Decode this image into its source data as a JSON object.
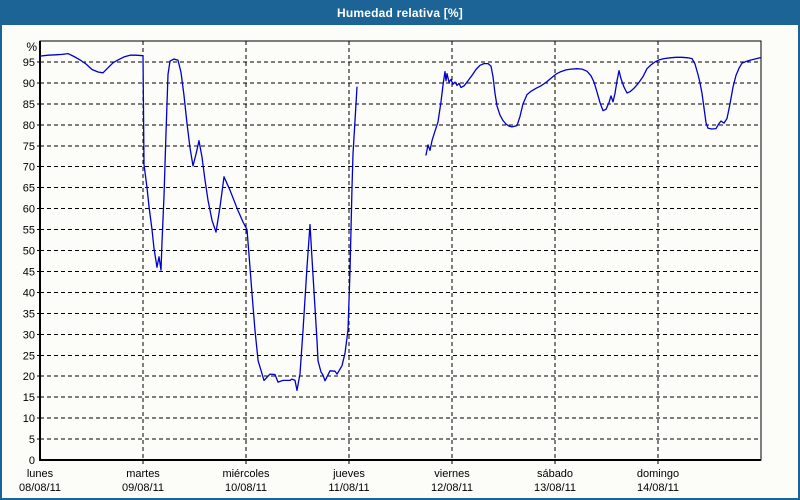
{
  "window": {
    "title": "Humedad relativa [%]",
    "titlebar_color": "#1d6496",
    "background_color": "#fcfdf8"
  },
  "chart_data": {
    "type": "line",
    "title": "Humedad relativa [%]",
    "ylabel": "%",
    "xlabel": "",
    "ylim": [
      0,
      100
    ],
    "xlim_days": [
      0,
      7
    ],
    "yticks": [
      0,
      5,
      10,
      15,
      20,
      25,
      30,
      35,
      40,
      45,
      50,
      55,
      60,
      65,
      70,
      75,
      80,
      85,
      90,
      95
    ],
    "grid": "dashed",
    "legend": "none",
    "line_color": "#0000cc",
    "grid_color": "#000000",
    "x_days": [
      {
        "name": "lunes",
        "date": "08/08/11"
      },
      {
        "name": "martes",
        "date": "09/08/11"
      },
      {
        "name": "miércoles",
        "date": "10/08/11"
      },
      {
        "name": "jueves",
        "date": "11/08/11"
      },
      {
        "name": "viernes",
        "date": "12/08/11"
      },
      {
        "name": "sábado",
        "date": "13/08/11"
      },
      {
        "name": "domingo",
        "date": "14/08/11"
      }
    ],
    "series": [
      {
        "name": "Humedad relativa",
        "segments": [
          [
            [
              0.0,
              96.4
            ],
            [
              0.078,
              96.6
            ],
            [
              0.155,
              96.7
            ],
            [
              0.214,
              96.8
            ],
            [
              0.272,
              97.0
            ],
            [
              0.33,
              96.3
            ],
            [
              0.388,
              95.5
            ],
            [
              0.447,
              94.5
            ],
            [
              0.505,
              93.2
            ],
            [
              0.563,
              92.6
            ],
            [
              0.612,
              92.4
            ],
            [
              0.66,
              93.6
            ],
            [
              0.709,
              94.8
            ],
            [
              0.757,
              95.5
            ],
            [
              0.816,
              96.2
            ],
            [
              0.874,
              96.6
            ],
            [
              0.932,
              96.6
            ],
            [
              1.0,
              96.5
            ],
            [
              1.01,
              70.5
            ],
            [
              1.039,
              65.0
            ],
            [
              1.058,
              60.5
            ],
            [
              1.087,
              55.0
            ],
            [
              1.107,
              50.5
            ],
            [
              1.136,
              46.0
            ],
            [
              1.155,
              48.5
            ],
            [
              1.175,
              45.3
            ],
            [
              1.184,
              52.0
            ],
            [
              1.204,
              63.0
            ],
            [
              1.223,
              78.0
            ],
            [
              1.243,
              92.0
            ],
            [
              1.262,
              95.2
            ],
            [
              1.301,
              95.7
            ],
            [
              1.34,
              95.4
            ],
            [
              1.369,
              92.5
            ],
            [
              1.398,
              87.0
            ],
            [
              1.427,
              80.3
            ],
            [
              1.456,
              74.5
            ],
            [
              1.485,
              70.2
            ],
            [
              1.515,
              73.0
            ],
            [
              1.544,
              76.2
            ],
            [
              1.573,
              72.3
            ],
            [
              1.602,
              66.8
            ],
            [
              1.631,
              62.0
            ],
            [
              1.67,
              57.2
            ],
            [
              1.709,
              54.4
            ],
            [
              1.748,
              60.4
            ],
            [
              1.786,
              67.6
            ],
            [
              1.845,
              64.4
            ],
            [
              1.913,
              60.1
            ],
            [
              1.971,
              56.8
            ],
            [
              2.01,
              55.0
            ],
            [
              2.029,
              49.0
            ],
            [
              2.058,
              39.7
            ],
            [
              2.087,
              30.9
            ],
            [
              2.117,
              23.7
            ],
            [
              2.155,
              20.6
            ],
            [
              2.175,
              19.0
            ],
            [
              2.233,
              20.5
            ],
            [
              2.282,
              20.4
            ],
            [
              2.311,
              18.6
            ],
            [
              2.359,
              19.0
            ],
            [
              2.427,
              19.0
            ],
            [
              2.447,
              19.3
            ],
            [
              2.476,
              19.0
            ],
            [
              2.495,
              16.6
            ],
            [
              2.524,
              20.6
            ],
            [
              2.553,
              30.9
            ],
            [
              2.592,
              46.0
            ],
            [
              2.621,
              56.2
            ],
            [
              2.65,
              44.5
            ],
            [
              2.689,
              28.5
            ],
            [
              2.699,
              23.7
            ],
            [
              2.728,
              21.0
            ],
            [
              2.747,
              20.3
            ],
            [
              2.767,
              18.9
            ],
            [
              2.816,
              21.3
            ],
            [
              2.864,
              21.2
            ],
            [
              2.884,
              20.5
            ],
            [
              2.932,
              22.5
            ],
            [
              2.961,
              25.5
            ],
            [
              2.99,
              31.0
            ],
            [
              3.01,
              45.0
            ],
            [
              3.019,
              55.0
            ],
            [
              3.029,
              65.0
            ],
            [
              3.039,
              73.0
            ],
            [
              3.058,
              81.0
            ],
            [
              3.078,
              89.0
            ]
          ],
          [
            [
              3.748,
              72.8
            ],
            [
              3.767,
              75.2
            ],
            [
              3.786,
              73.9
            ],
            [
              3.806,
              76.2
            ],
            [
              3.835,
              78.5
            ],
            [
              3.864,
              80.7
            ],
            [
              3.893,
              85.5
            ],
            [
              3.913,
              89.5
            ],
            [
              3.932,
              92.7
            ],
            [
              3.942,
              90.5
            ],
            [
              3.951,
              92.2
            ],
            [
              3.971,
              90.2
            ],
            [
              3.99,
              90.8
            ],
            [
              4.01,
              89.7
            ],
            [
              4.029,
              90.2
            ],
            [
              4.049,
              89.4
            ],
            [
              4.068,
              89.9
            ],
            [
              4.087,
              88.9
            ],
            [
              4.117,
              89.3
            ],
            [
              4.155,
              90.5
            ],
            [
              4.194,
              91.8
            ],
            [
              4.233,
              93.2
            ],
            [
              4.272,
              94.2
            ],
            [
              4.311,
              94.6
            ],
            [
              4.35,
              94.6
            ],
            [
              4.379,
              94.0
            ],
            [
              4.398,
              91.5
            ],
            [
              4.417,
              87.5
            ],
            [
              4.437,
              84.5
            ],
            [
              4.466,
              82.3
            ],
            [
              4.495,
              81.0
            ],
            [
              4.524,
              80.2
            ],
            [
              4.553,
              79.7
            ],
            [
              4.583,
              79.5
            ],
            [
              4.631,
              79.8
            ],
            [
              4.66,
              82.0
            ],
            [
              4.689,
              85.0
            ],
            [
              4.728,
              87.2
            ],
            [
              4.767,
              88.0
            ],
            [
              4.816,
              88.7
            ],
            [
              4.864,
              89.3
            ],
            [
              4.912,
              90.1
            ],
            [
              4.961,
              91.1
            ],
            [
              5.01,
              92.1
            ],
            [
              5.058,
              92.7
            ],
            [
              5.107,
              93.1
            ],
            [
              5.155,
              93.3
            ],
            [
              5.214,
              93.4
            ],
            [
              5.262,
              93.3
            ],
            [
              5.311,
              92.8
            ],
            [
              5.35,
              91.7
            ],
            [
              5.379,
              90.2
            ],
            [
              5.408,
              87.8
            ],
            [
              5.437,
              85.3
            ],
            [
              5.466,
              83.4
            ],
            [
              5.495,
              83.7
            ],
            [
              5.524,
              85.3
            ],
            [
              5.544,
              86.9
            ],
            [
              5.563,
              85.5
            ],
            [
              5.583,
              87.5
            ],
            [
              5.602,
              90.5
            ],
            [
              5.621,
              92.9
            ],
            [
              5.641,
              91.0
            ],
            [
              5.67,
              89.0
            ],
            [
              5.699,
              87.6
            ],
            [
              5.728,
              87.9
            ],
            [
              5.767,
              88.7
            ],
            [
              5.806,
              89.8
            ],
            [
              5.854,
              91.5
            ],
            [
              5.893,
              93.4
            ],
            [
              5.932,
              94.3
            ],
            [
              5.971,
              95.0
            ],
            [
              6.01,
              95.5
            ],
            [
              6.058,
              95.8
            ],
            [
              6.117,
              96.0
            ],
            [
              6.175,
              96.1
            ],
            [
              6.233,
              96.1
            ],
            [
              6.291,
              96.0
            ],
            [
              6.33,
              95.8
            ],
            [
              6.359,
              94.5
            ],
            [
              6.388,
              92.0
            ],
            [
              6.408,
              90.0
            ],
            [
              6.427,
              87.5
            ],
            [
              6.447,
              84.0
            ],
            [
              6.466,
              80.5
            ],
            [
              6.485,
              79.2
            ],
            [
              6.524,
              79.0
            ],
            [
              6.563,
              79.1
            ],
            [
              6.592,
              80.3
            ],
            [
              6.612,
              80.9
            ],
            [
              6.641,
              80.4
            ],
            [
              6.67,
              81.5
            ],
            [
              6.699,
              85.0
            ],
            [
              6.728,
              89.0
            ],
            [
              6.757,
              91.8
            ],
            [
              6.786,
              93.5
            ],
            [
              6.816,
              94.7
            ],
            [
              6.854,
              95.1
            ],
            [
              6.893,
              95.4
            ],
            [
              6.942,
              95.7
            ],
            [
              6.99,
              96.0
            ]
          ]
        ]
      }
    ]
  }
}
